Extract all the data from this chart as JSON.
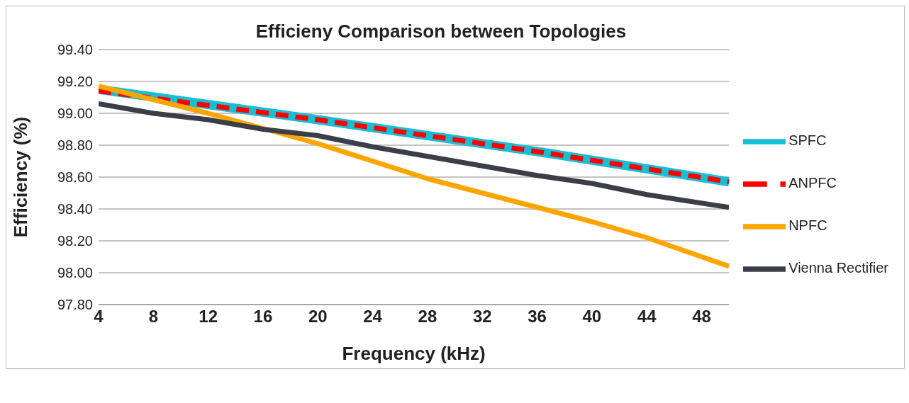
{
  "chart_data": {
    "type": "line",
    "title": "Efficieny Comparison between Topologies",
    "xlabel": "Frequency (kHz)",
    "ylabel": "Efficiency (%)",
    "xlim": [
      4,
      50
    ],
    "xticks": [
      4,
      8,
      12,
      16,
      20,
      24,
      28,
      32,
      36,
      40,
      44,
      48
    ],
    "ylim": [
      97.8,
      99.4
    ],
    "yticks": [
      {
        "value": 97.8,
        "label": "97.80"
      },
      {
        "value": 98.0,
        "label": "98.00"
      },
      {
        "value": 98.2,
        "label": "98.20"
      },
      {
        "value": 98.4,
        "label": "98.40"
      },
      {
        "value": 98.6,
        "label": "98.60"
      },
      {
        "value": 98.8,
        "label": "98.80"
      },
      {
        "value": 99.0,
        "label": "99.00"
      },
      {
        "value": 99.2,
        "label": "99.20"
      },
      {
        "value": 99.4,
        "label": "99.40"
      }
    ],
    "grid": "y",
    "legend": "right",
    "marker": "none",
    "series": [
      {
        "name": "SPFC",
        "color": "#17bfd4",
        "line_style": "solid",
        "x": [
          4,
          20,
          36,
          50
        ],
        "values": [
          99.15,
          98.96,
          98.76,
          98.57
        ]
      },
      {
        "name": "ANPFC",
        "color": "#ff0000",
        "line_style": "dashed",
        "x": [
          4,
          20,
          36,
          50
        ],
        "values": [
          99.14,
          98.96,
          98.76,
          98.57
        ]
      },
      {
        "name": "NPFC",
        "color": "#ffa500",
        "line_style": "solid",
        "x": [
          4,
          12,
          20,
          28,
          36,
          40,
          44,
          50
        ],
        "values": [
          99.17,
          99.0,
          98.81,
          98.59,
          98.41,
          98.32,
          98.22,
          98.04
        ]
      },
      {
        "name": "Vienna Rectifier",
        "color": "#3a3f47",
        "line_style": "solid",
        "x": [
          4,
          8,
          12,
          16,
          20,
          24,
          28,
          32,
          36,
          40,
          44,
          50
        ],
        "values": [
          99.06,
          99.0,
          98.96,
          98.9,
          98.86,
          98.79,
          98.73,
          98.67,
          98.61,
          98.56,
          98.49,
          98.41
        ]
      }
    ]
  }
}
